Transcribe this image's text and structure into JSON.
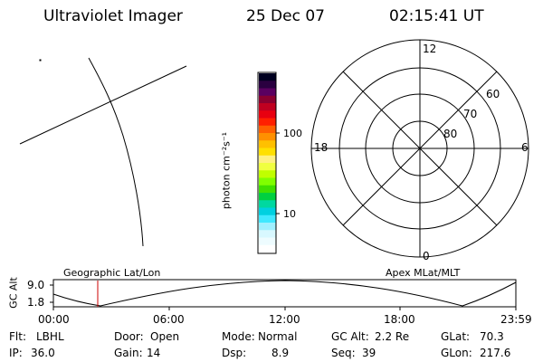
{
  "header": {
    "title": "Ultraviolet Imager",
    "date": "25 Dec 07",
    "time": "02:15:41 UT"
  },
  "colorbar": {
    "unit_label": "photon cm⁻²s⁻¹",
    "ticks": [
      "100",
      "10"
    ],
    "colors": [
      "#000020",
      "#2a0040",
      "#5a0060",
      "#8a0030",
      "#c00020",
      "#e80010",
      "#ff2000",
      "#ff6000",
      "#ff9000",
      "#ffc000",
      "#ffe000",
      "#fff080",
      "#f0ff40",
      "#c0ff00",
      "#80ff00",
      "#40e000",
      "#00d040",
      "#00d8a0",
      "#00d0e0",
      "#40e8ff",
      "#a0f0ff",
      "#d8f8ff",
      "#eefcff",
      "#ffffff"
    ]
  },
  "polar": {
    "mlt_labels": {
      "top": "12",
      "left": "18",
      "right": "6",
      "bottom": "0"
    },
    "lat_labels": [
      "60",
      "70",
      "80"
    ]
  },
  "strip": {
    "y_title": "GC Alt",
    "y_top": "9.0",
    "y_bottom": "1.8",
    "left_caption": "Geographic Lat/Lon",
    "right_caption": "Apex MLat/MLT",
    "time_ticks": [
      "00:00",
      "06:00",
      "12:00",
      "18:00",
      "23:59"
    ]
  },
  "info": {
    "row1": [
      {
        "k": "Flt:",
        "v": "LBHL"
      },
      {
        "k": "Door:",
        "v": "Open"
      },
      {
        "k": "Mode:",
        "v": "Normal"
      },
      {
        "k": "GC Alt:",
        "v": "2.2 Re"
      },
      {
        "k": "GLat:",
        "v": "70.3"
      }
    ],
    "row2": [
      {
        "k": "IP:",
        "v": "36.0"
      },
      {
        "k": "Gain:",
        "v": "14"
      },
      {
        "k": "Dsp:",
        "v": "8.9"
      },
      {
        "k": "Seq:",
        "v": "39"
      },
      {
        "k": "GLon:",
        "v": "217.6"
      }
    ]
  }
}
